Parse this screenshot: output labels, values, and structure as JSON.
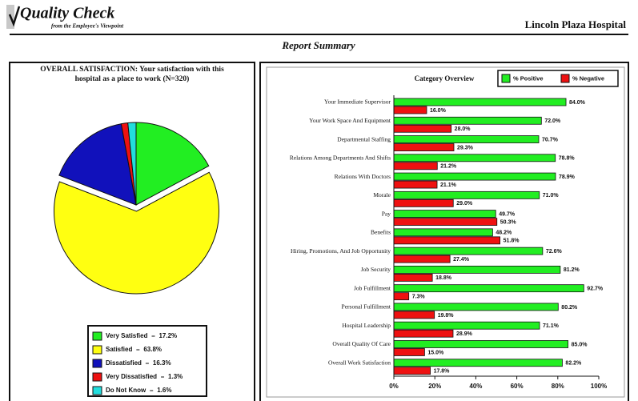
{
  "header": {
    "logo": "Quality Check",
    "tagline": "from the Employee's Viewpoint",
    "organization": "Lincoln Plaza Hospital",
    "subtitle": "Report Summary"
  },
  "chart_data": [
    {
      "type": "pie",
      "title": "OVERALL SATISFACTION:  Your satisfaction with this",
      "title_line2": "hospital as a place to work  (N=320)",
      "categories": [
        "Very Satisfied",
        "Satisfied",
        "Dissatisfied",
        "Very Dissatisfied",
        "Do Not Know"
      ],
      "values": [
        17.2,
        63.8,
        16.3,
        1.3,
        1.6
      ],
      "value_labels": [
        "17.2%",
        "63.8%",
        "16.3%",
        "1.3%",
        "1.6%"
      ],
      "colors": [
        "#22ee22",
        "#ffff11",
        "#1111bb",
        "#ee1111",
        "#22dddd"
      ],
      "exploded": 1
    },
    {
      "type": "hbar",
      "title": "Category Overview",
      "categories": [
        "Your Immediate Supervisor",
        "Your Work Space And Equipment",
        "Departmental Staffing",
        "Relations Among Departments And Shifts",
        "Relations With Doctors",
        "Morale",
        "Pay",
        "Benefits",
        "Hiring, Promotions, And Job Opportunity",
        "Job Security",
        "Job Fulfillment",
        "Personal Fulfillment",
        "Hospital Leadership",
        "Overall Quality Of Care",
        "Overall Work Satisfaction"
      ],
      "series": [
        {
          "name": "% Positive",
          "color": "#22ee22",
          "values": [
            84.0,
            72.0,
            70.7,
            78.8,
            78.9,
            71.0,
            49.7,
            48.2,
            72.6,
            81.2,
            92.7,
            80.2,
            71.1,
            85.0,
            82.2
          ],
          "value_labels": [
            "84.0%",
            "72.0%",
            "70.7%",
            "78.8%",
            "78.9%",
            "71.0%",
            "49.7%",
            "48.2%",
            "72.6%",
            "81.2%",
            "92.7%",
            "80.2%",
            "71.1%",
            "85.0%",
            "82.2%"
          ]
        },
        {
          "name": "% Negative",
          "color": "#ee1111",
          "values": [
            16.0,
            28.0,
            29.3,
            21.2,
            21.1,
            29.0,
            50.3,
            51.8,
            27.4,
            18.8,
            7.3,
            19.8,
            28.9,
            15.0,
            17.8
          ],
          "value_labels": [
            "16.0%",
            "28.0%",
            "29.3%",
            "21.2%",
            "21.1%",
            "29.0%",
            "50.3%",
            "51.8%",
            "27.4%",
            "18.8%",
            "7.3%",
            "19.8%",
            "28.9%",
            "15.0%",
            "17.8%"
          ]
        }
      ],
      "xlim": [
        0,
        100
      ],
      "xticks": [
        {
          "value": 0,
          "label": "0%"
        },
        {
          "value": 20,
          "label": "20%"
        },
        {
          "value": 40,
          "label": "40%"
        },
        {
          "value": 60,
          "label": "60%"
        },
        {
          "value": 80,
          "label": "80%"
        },
        {
          "value": 100,
          "label": "100%"
        }
      ],
      "legend": "top-right"
    }
  ]
}
